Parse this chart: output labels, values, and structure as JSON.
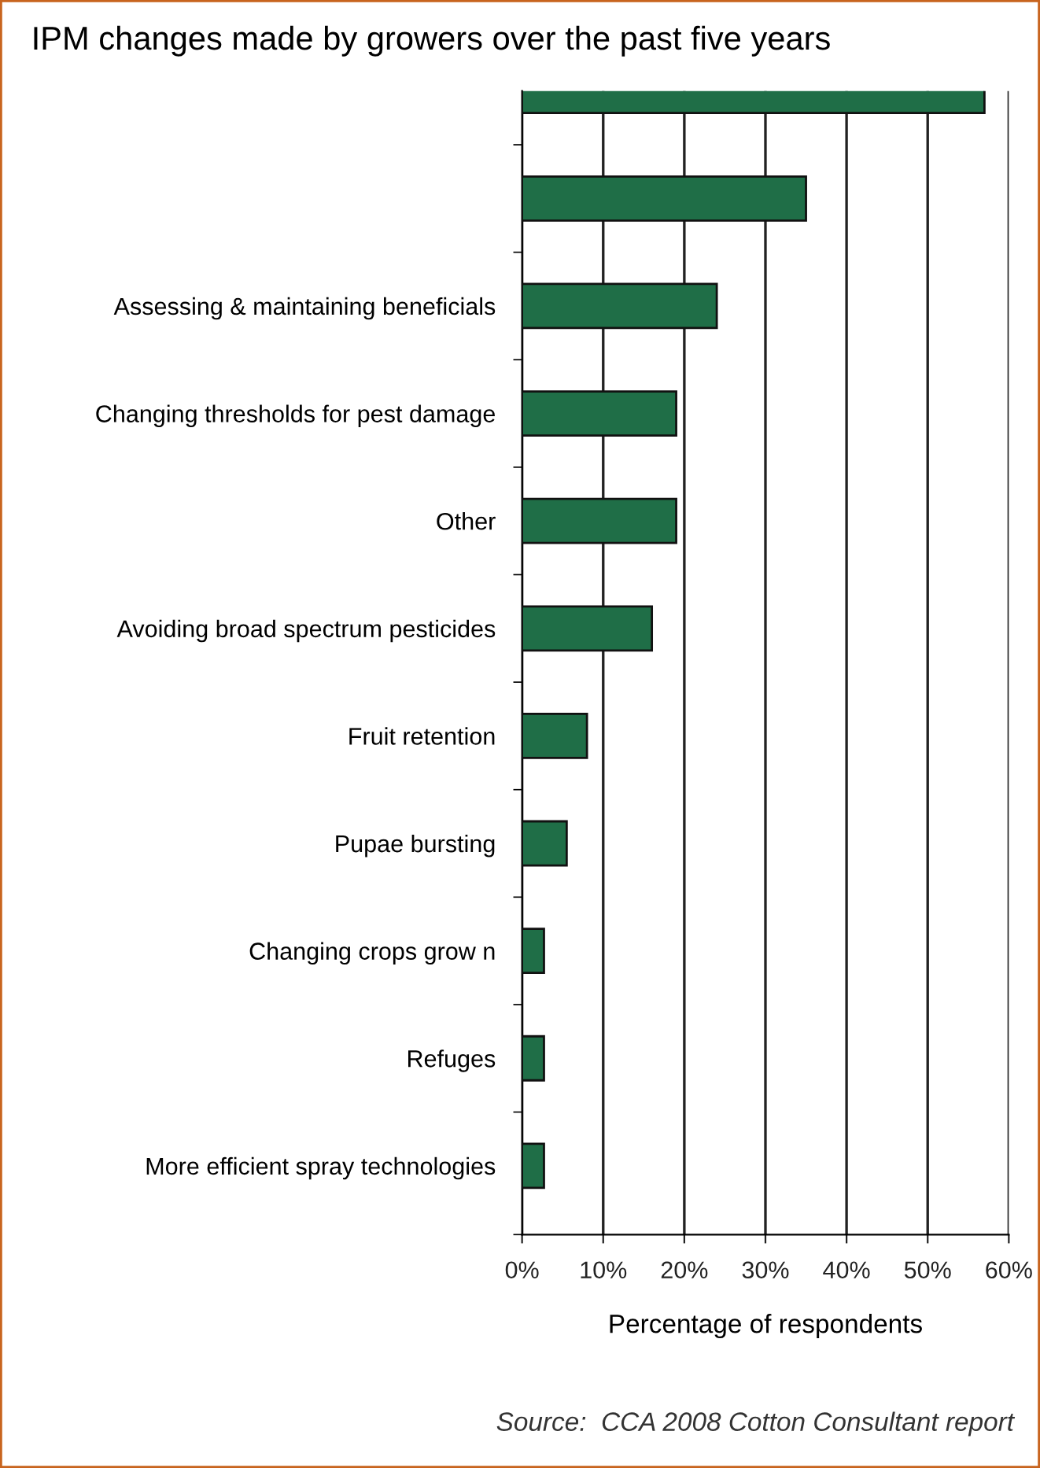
{
  "chart_data": {
    "type": "bar",
    "orientation": "horizontal",
    "title": "IPM changes made by growers over the past five years",
    "xlabel": "Percentage of respondents",
    "categories": [
      null,
      null,
      "Assessing & maintaining beneficials",
      "Changing thresholds for pest damage",
      "Other",
      "Avoiding broad spectrum pesticides",
      "Fruit retention",
      "Pupae bursting",
      "Changing crops grow n",
      "Refuges",
      "More efficient spray technologies"
    ],
    "values": [
      57,
      35,
      24,
      19,
      19,
      16,
      8,
      5.5,
      2.7,
      2.7,
      2.7
    ],
    "color": "#1f6e47",
    "xlim": [
      0,
      60
    ],
    "xticks": [
      {
        "value": 0,
        "label": "0%"
      },
      {
        "value": 10,
        "label": "10%"
      },
      {
        "value": 20,
        "label": "20%"
      },
      {
        "value": 30,
        "label": "30%"
      },
      {
        "value": 40,
        "label": "40%"
      },
      {
        "value": 50,
        "label": "50%"
      },
      {
        "value": 60,
        "label": "60%"
      }
    ],
    "grid": "x",
    "annotations": [
      "Source:  CCA 2008 Cotton Consultant report"
    ]
  }
}
